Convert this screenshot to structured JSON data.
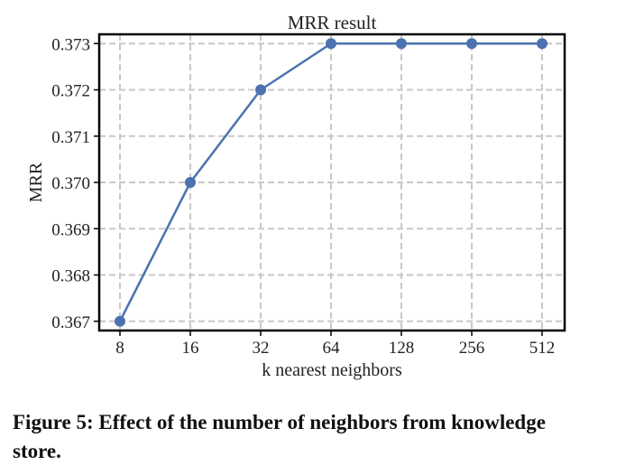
{
  "chart_data": {
    "type": "line",
    "title": "MRR result",
    "xlabel": "k nearest neighbors",
    "ylabel": "MRR",
    "categories": [
      "8",
      "16",
      "32",
      "64",
      "128",
      "256",
      "512"
    ],
    "series": [
      {
        "name": "MRR",
        "values": [
          0.367,
          0.37,
          0.372,
          0.373,
          0.373,
          0.373,
          0.373
        ]
      }
    ],
    "yticks": [
      "0.367",
      "0.368",
      "0.369",
      "0.370",
      "0.371",
      "0.372",
      "0.373"
    ],
    "ylim": [
      0.3668,
      0.3732
    ],
    "grid": true,
    "line_color": "#4c72b0"
  },
  "caption": "Figure 5: Effect of the number of neighbors from knowledge\nstore."
}
